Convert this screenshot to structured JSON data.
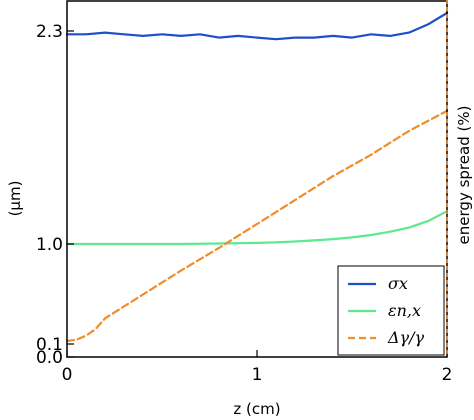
{
  "chart_data": {
    "type": "line",
    "title": "",
    "xlabel": "z (cm)",
    "ylabel": "(μm)",
    "y2label": "energy spread (%)",
    "xlim": [
      0,
      2
    ],
    "ylim": [
      0,
      2.5
    ],
    "xticks": [
      0,
      1,
      2
    ],
    "xtick_labels": [
      "0",
      "1",
      "2"
    ],
    "yticks": [
      0.0,
      0.1,
      1.0,
      2.3
    ],
    "ytick_labels": [
      "0.0",
      "0.1",
      "1.0",
      "2.3"
    ],
    "grid": false,
    "legend_position": "bottom-right",
    "series": [
      {
        "name": "σx",
        "color": "#1f4fc8",
        "style": "solid",
        "axis": "left",
        "x": [
          0,
          0.1,
          0.2,
          0.3,
          0.4,
          0.5,
          0.6,
          0.7,
          0.8,
          0.9,
          1.0,
          1.1,
          1.2,
          1.3,
          1.4,
          1.5,
          1.6,
          1.7,
          1.8,
          1.9,
          2.0
        ],
        "y": [
          2.28,
          2.28,
          2.29,
          2.28,
          2.27,
          2.28,
          2.27,
          2.28,
          2.26,
          2.27,
          2.26,
          2.25,
          2.26,
          2.26,
          2.27,
          2.26,
          2.28,
          2.27,
          2.29,
          2.34,
          2.41
        ]
      },
      {
        "name": "εn,x",
        "color": "#5ee88f",
        "style": "solid",
        "axis": "left",
        "x": [
          0,
          0.2,
          0.4,
          0.6,
          0.8,
          1.0,
          1.1,
          1.2,
          1.3,
          1.4,
          1.5,
          1.6,
          1.7,
          1.8,
          1.9,
          2.0
        ],
        "y": [
          1.0,
          1.0,
          1.0,
          1.0,
          1.003,
          1.007,
          1.01,
          1.015,
          1.022,
          1.03,
          1.04,
          1.055,
          1.075,
          1.1,
          1.14,
          1.2
        ]
      },
      {
        "name": "Δγ/γ",
        "color": "#f08c2a",
        "style": "dashed",
        "axis": "right",
        "x": [
          0,
          0.05,
          0.1,
          0.15,
          0.2,
          0.4,
          0.6,
          0.8,
          1.0,
          1.2,
          1.4,
          1.6,
          1.8,
          2.0
        ],
        "y": [
          0.12,
          0.13,
          0.16,
          0.21,
          0.29,
          0.47,
          0.65,
          0.82,
          1.0,
          1.18,
          1.36,
          1.52,
          1.7,
          1.85
        ]
      }
    ]
  }
}
